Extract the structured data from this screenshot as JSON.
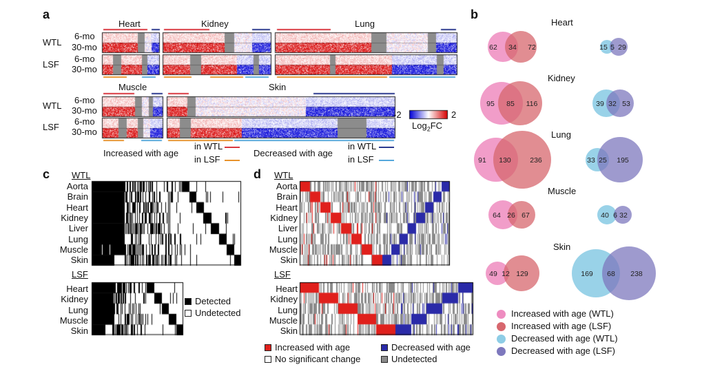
{
  "panel_a": {
    "label": "a",
    "tissues_top": [
      "Heart",
      "Kidney",
      "Lung"
    ],
    "tissues_bottom": [
      "Muscle",
      "Skin"
    ],
    "groups": [
      "WTL",
      "LSF"
    ],
    "ages": [
      "6-mo",
      "30-mo"
    ],
    "colorbar": {
      "min": "-2",
      "max": "2",
      "label": "Log",
      "label_sub": "2",
      "label_tail": "FC"
    },
    "legend": {
      "increased": "Increased with age",
      "decreased": "Decreased with age",
      "in_wtl": "in WTL",
      "in_lsf": "in LSF"
    },
    "colors": {
      "inc_wtl": "#d9363e",
      "inc_lsf": "#e8932c",
      "dec_wtl": "#2b3a8f",
      "dec_lsf": "#55a8dc",
      "up": "#d7191c",
      "down": "#2020d0",
      "gray": "#8c8c8c"
    }
  },
  "panel_b": {
    "label": "b"
  },
  "panel_c": {
    "label": "c",
    "wtl": "WTL",
    "lsf": "LSF",
    "wtl_rows": [
      "Aorta",
      "Brain",
      "Heart",
      "Kidney",
      "Liver",
      "Lung",
      "Muscle",
      "Skin"
    ],
    "lsf_rows": [
      "Heart",
      "Kidney",
      "Lung",
      "Muscle",
      "Skin"
    ],
    "legend": {
      "detected": "Detected",
      "undetected": "Undetected"
    }
  },
  "panel_d": {
    "label": "d",
    "wtl": "WTL",
    "lsf": "LSF",
    "wtl_rows": [
      "Aorta",
      "Brain",
      "Heart",
      "Kidney",
      "Liver",
      "Lung",
      "Muscle",
      "Skin"
    ],
    "lsf_rows": [
      "Heart",
      "Kidney",
      "Lung",
      "Muscle",
      "Skin"
    ],
    "legend": {
      "increased": "Increased with age",
      "decreased": "Decreased with age",
      "nochange": "No significant change",
      "undetected": "Undetected"
    },
    "colors": {
      "increased": "#e0201c",
      "decreased": "#2a2aa8",
      "nochange": "#ffffff",
      "undetected": "#8a8a8a"
    }
  },
  "chart_data": {
    "type": "venn",
    "title": "",
    "sets": [
      "Increased with age (WTL)",
      "Increased with age (LSF)",
      "Decreased with age (WTL)",
      "Decreased with age (LSF)"
    ],
    "colors": [
      "#ee8cc0",
      "#d7676e",
      "#8ecde6",
      "#7d78bd"
    ],
    "tissues": [
      {
        "name": "Heart",
        "increased": {
          "wtl_only": 62,
          "both": 34,
          "lsf_only": 72
        },
        "decreased": {
          "wtl_only": 15,
          "both": 5,
          "lsf_only": 29
        }
      },
      {
        "name": "Kidney",
        "increased": {
          "wtl_only": 95,
          "both": 85,
          "lsf_only": 116
        },
        "decreased": {
          "wtl_only": 39,
          "both": 32,
          "lsf_only": 53
        }
      },
      {
        "name": "Lung",
        "increased": {
          "wtl_only": 91,
          "both": 130,
          "lsf_only": 236
        },
        "decreased": {
          "wtl_only": 33,
          "both": 25,
          "lsf_only": 195
        }
      },
      {
        "name": "Muscle",
        "increased": {
          "wtl_only": 64,
          "both": 26,
          "lsf_only": 67
        },
        "decreased": {
          "wtl_only": 40,
          "both": 6,
          "lsf_only": 32
        }
      },
      {
        "name": "Skin",
        "increased": {
          "wtl_only": 49,
          "both": 12,
          "lsf_only": 129
        },
        "decreased": {
          "wtl_only": 169,
          "both": 68,
          "lsf_only": 238
        }
      }
    ]
  }
}
